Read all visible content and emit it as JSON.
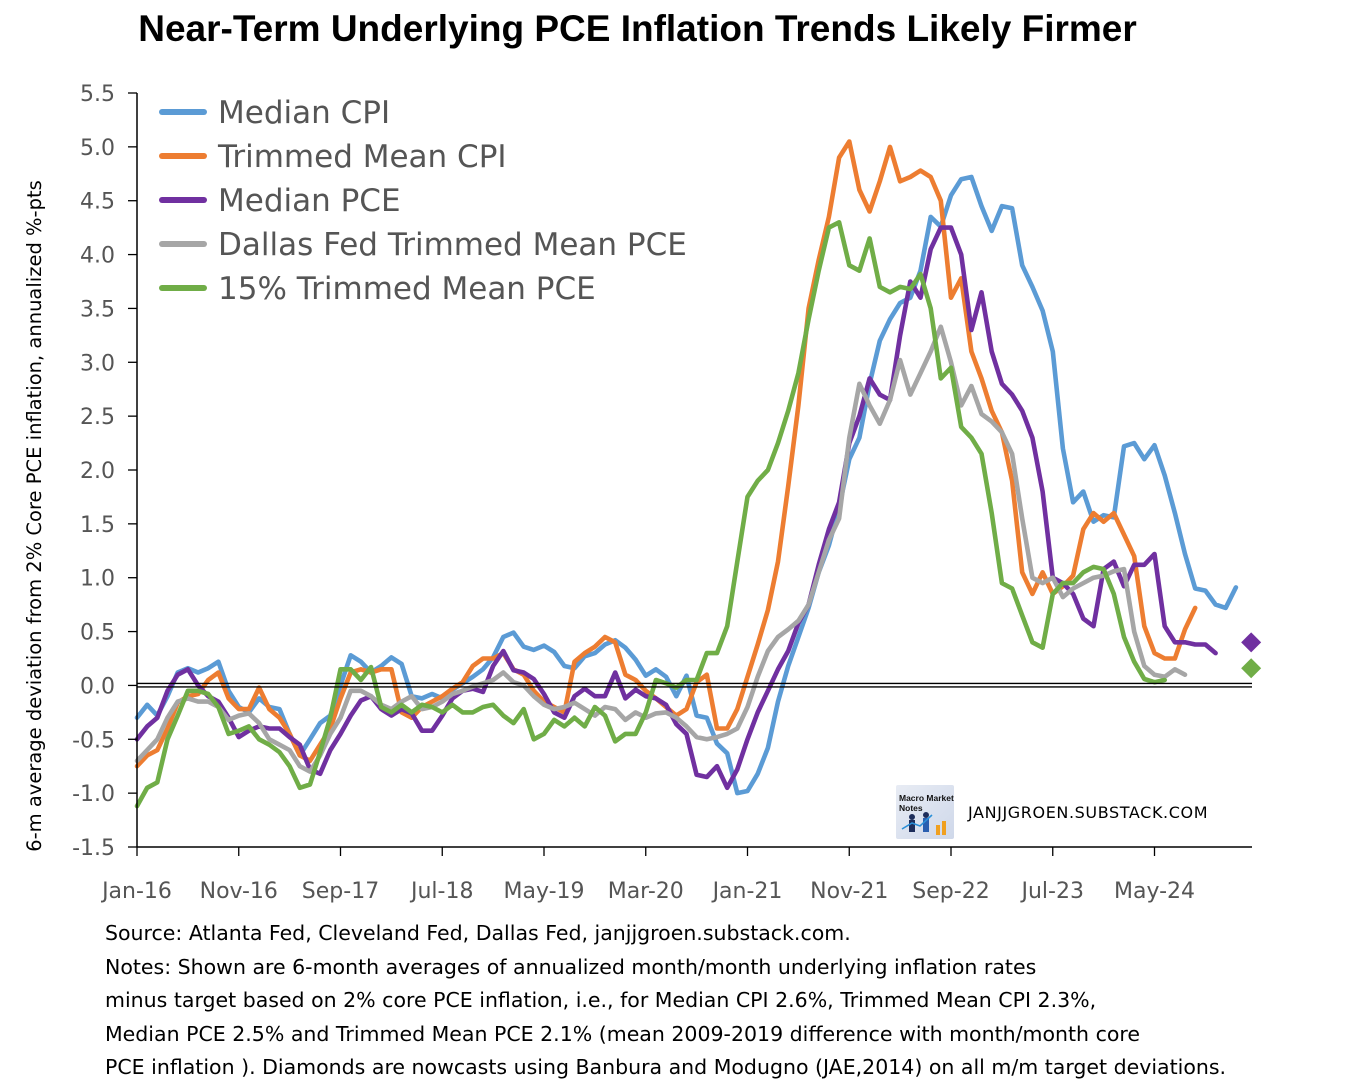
{
  "chart_data": {
    "type": "line",
    "title": "Near-Term Underlying PCE Inflation Trends Likely Firmer",
    "xlabel": "",
    "ylabel": "6-m average deviation from 2% Core PCE inflation, annualized %-pts",
    "ylim": [
      -1.5,
      5.5
    ],
    "yticks": [
      "-1.5",
      "-1.0",
      "-0.5",
      "0.0",
      "0.5",
      "1.0",
      "1.5",
      "2.0",
      "2.5",
      "3.0",
      "3.5",
      "4.0",
      "4.5",
      "5.0",
      "5.5"
    ],
    "xticks": [
      "Jan-16",
      "Nov-16",
      "Sep-17",
      "Jul-18",
      "May-19",
      "Mar-20",
      "Jan-21",
      "Nov-21",
      "Sep-22",
      "Jul-23",
      "May-24"
    ],
    "x_start": "Jan-16",
    "x_end": "Jan-25",
    "grid": false,
    "legend": "top-left",
    "zero_line": true,
    "series": [
      {
        "name": "Median CPI",
        "color": "#5B9BD5",
        "values": [
          -0.3,
          -0.18,
          -0.28,
          -0.1,
          0.12,
          0.16,
          0.12,
          0.16,
          0.22,
          -0.05,
          -0.2,
          -0.25,
          -0.12,
          -0.2,
          -0.22,
          -0.45,
          -0.65,
          -0.5,
          -0.35,
          -0.28,
          0.0,
          0.28,
          0.22,
          0.12,
          0.18,
          0.26,
          0.2,
          -0.1,
          -0.12,
          -0.08,
          -0.12,
          -0.04,
          0.02,
          0.08,
          0.15,
          0.26,
          0.45,
          0.49,
          0.36,
          0.33,
          0.37,
          0.31,
          0.18,
          0.16,
          0.27,
          0.3,
          0.38,
          0.42,
          0.35,
          0.24,
          0.09,
          0.15,
          0.08,
          -0.1,
          0.09,
          -0.28,
          -0.3,
          -0.54,
          -0.63,
          -1.0,
          -0.98,
          -0.82,
          -0.58,
          -0.15,
          0.18,
          0.45,
          0.72,
          1.05,
          1.3,
          1.65,
          2.1,
          2.3,
          2.8,
          3.2,
          3.4,
          3.55,
          3.6,
          3.85,
          4.35,
          4.26,
          4.55,
          4.7,
          4.72,
          4.45,
          4.22,
          4.45,
          4.43,
          3.9,
          3.7,
          3.48,
          3.1,
          2.2,
          1.7,
          1.8,
          1.52,
          1.58,
          1.56,
          2.22,
          2.25,
          2.1,
          2.23,
          1.95,
          1.6,
          1.22,
          0.9,
          0.88,
          0.75,
          0.72,
          0.91
        ]
      },
      {
        "name": "Trimmed Mean CPI",
        "color": "#ED7D31",
        "values": [
          -0.75,
          -0.65,
          -0.6,
          -0.4,
          -0.16,
          -0.1,
          -0.08,
          0.05,
          0.12,
          -0.12,
          -0.22,
          -0.22,
          -0.02,
          -0.22,
          -0.3,
          -0.45,
          -0.65,
          -0.7,
          -0.55,
          -0.4,
          -0.12,
          0.12,
          0.15,
          0.12,
          0.15,
          0.15,
          -0.25,
          -0.3,
          -0.2,
          -0.15,
          -0.1,
          -0.03,
          0.03,
          0.18,
          0.25,
          0.25,
          0.3,
          0.15,
          0.1,
          -0.05,
          -0.15,
          -0.2,
          -0.25,
          0.22,
          0.3,
          0.36,
          0.45,
          0.4,
          0.1,
          0.05,
          -0.05,
          -0.12,
          -0.2,
          -0.28,
          -0.22,
          0.03,
          0.1,
          -0.4,
          -0.4,
          -0.22,
          0.08,
          0.38,
          0.7,
          1.15,
          1.85,
          2.6,
          3.5,
          3.95,
          4.35,
          4.9,
          5.05,
          4.6,
          4.4,
          4.68,
          5.0,
          4.68,
          4.72,
          4.78,
          4.72,
          4.5,
          3.6,
          3.78,
          3.1,
          2.85,
          2.55,
          2.35,
          1.9,
          1.05,
          0.85,
          1.05,
          0.85,
          0.92,
          1.02,
          1.45,
          1.6,
          1.52,
          1.6,
          1.4,
          1.2,
          0.55,
          0.3,
          0.25,
          0.25,
          0.52,
          0.72
        ]
      },
      {
        "name": "Median PCE",
        "color": "#7030A0",
        "values": [
          -0.5,
          -0.38,
          -0.3,
          -0.05,
          0.1,
          0.15,
          0.0,
          -0.1,
          -0.15,
          -0.3,
          -0.48,
          -0.42,
          -0.38,
          -0.4,
          -0.4,
          -0.48,
          -0.55,
          -0.78,
          -0.82,
          -0.6,
          -0.45,
          -0.28,
          -0.14,
          -0.1,
          -0.22,
          -0.28,
          -0.22,
          -0.26,
          -0.42,
          -0.42,
          -0.28,
          -0.12,
          -0.05,
          -0.03,
          -0.06,
          0.18,
          0.32,
          0.14,
          0.12,
          0.06,
          -0.08,
          -0.25,
          -0.3,
          -0.1,
          -0.03,
          -0.1,
          -0.1,
          0.12,
          -0.12,
          -0.04,
          -0.1,
          -0.12,
          -0.18,
          -0.36,
          -0.45,
          -0.83,
          -0.85,
          -0.75,
          -0.95,
          -0.78,
          -0.5,
          -0.25,
          -0.05,
          0.15,
          0.32,
          0.58,
          0.75,
          1.12,
          1.45,
          1.7,
          2.25,
          2.5,
          2.85,
          2.7,
          2.65,
          3.25,
          3.75,
          3.6,
          4.05,
          4.25,
          4.25,
          4.0,
          3.3,
          3.65,
          3.1,
          2.8,
          2.7,
          2.55,
          2.3,
          1.8,
          1.0,
          0.95,
          0.85,
          0.62,
          0.55,
          1.08,
          1.15,
          0.92,
          1.12,
          1.12,
          1.22,
          0.55,
          0.4,
          0.4,
          0.38,
          0.38,
          0.3
        ]
      },
      {
        "name": "Dallas Fed Trimmed Mean PCE",
        "color": "#A6A6A6",
        "values": [
          -0.7,
          -0.6,
          -0.5,
          -0.3,
          -0.15,
          -0.12,
          -0.15,
          -0.15,
          -0.2,
          -0.32,
          -0.28,
          -0.26,
          -0.35,
          -0.5,
          -0.55,
          -0.6,
          -0.75,
          -0.8,
          -0.65,
          -0.45,
          -0.3,
          -0.05,
          -0.05,
          -0.1,
          -0.18,
          -0.22,
          -0.15,
          -0.1,
          -0.22,
          -0.2,
          -0.15,
          -0.08,
          -0.05,
          -0.01,
          0.02,
          0.05,
          0.12,
          0.03,
          0.0,
          -0.1,
          -0.18,
          -0.22,
          -0.2,
          -0.16,
          -0.22,
          -0.28,
          -0.2,
          -0.22,
          -0.32,
          -0.25,
          -0.3,
          -0.26,
          -0.25,
          -0.3,
          -0.38,
          -0.48,
          -0.5,
          -0.48,
          -0.45,
          -0.4,
          -0.2,
          0.08,
          0.32,
          0.45,
          0.52,
          0.6,
          0.75,
          1.05,
          1.35,
          1.55,
          2.3,
          2.8,
          2.6,
          2.43,
          2.65,
          3.02,
          2.7,
          2.9,
          3.1,
          3.33,
          3.0,
          2.6,
          2.78,
          2.52,
          2.45,
          2.35,
          2.15,
          1.55,
          1.0,
          0.95,
          1.0,
          0.82,
          0.9,
          0.95,
          1.0,
          1.02,
          1.06,
          1.08,
          0.5,
          0.18,
          0.1,
          0.08,
          0.15,
          0.1
        ]
      },
      {
        "name": "15% Trimmed Mean PCE",
        "color": "#70AD47",
        "values": [
          -1.12,
          -0.95,
          -0.9,
          -0.5,
          -0.28,
          -0.05,
          -0.05,
          -0.08,
          -0.2,
          -0.45,
          -0.42,
          -0.38,
          -0.5,
          -0.55,
          -0.62,
          -0.75,
          -0.95,
          -0.92,
          -0.62,
          -0.3,
          0.15,
          0.15,
          0.05,
          0.17,
          -0.2,
          -0.25,
          -0.18,
          -0.25,
          -0.18,
          -0.2,
          -0.25,
          -0.18,
          -0.25,
          -0.25,
          -0.2,
          -0.18,
          -0.28,
          -0.35,
          -0.22,
          -0.5,
          -0.45,
          -0.32,
          -0.38,
          -0.3,
          -0.38,
          -0.2,
          -0.28,
          -0.52,
          -0.45,
          -0.45,
          -0.25,
          0.05,
          0.02,
          -0.02,
          0.05,
          0.05,
          0.3,
          0.3,
          0.55,
          1.15,
          1.75,
          1.9,
          2.0,
          2.25,
          2.55,
          2.9,
          3.4,
          3.85,
          4.25,
          4.3,
          3.9,
          3.85,
          4.15,
          3.7,
          3.65,
          3.7,
          3.68,
          3.82,
          3.5,
          2.85,
          2.95,
          2.4,
          2.3,
          2.15,
          1.6,
          0.95,
          0.9,
          0.65,
          0.4,
          0.35,
          0.85,
          0.95,
          0.95,
          1.05,
          1.1,
          1.08,
          0.85,
          0.45,
          0.22,
          0.06,
          0.03,
          0.05
        ]
      }
    ],
    "nowcasts": [
      {
        "series": "Median PCE",
        "value": 0.4,
        "color": "#7030A0"
      },
      {
        "series": "15% Trimmed Mean PCE",
        "value": 0.16,
        "color": "#70AD47"
      }
    ]
  },
  "watermark": {
    "logo_text_line1": "Macro Market",
    "logo_text_line2": "Notes",
    "site": "JANJJGROEN.SUBSTACK.COM"
  },
  "notes": {
    "line1": "Source: Atlanta Fed, Cleveland Fed, Dallas Fed, janjjgroen.substack.com.",
    "line2": "Notes: Shown are 6-month averages of annualized month/month underlying inflation rates",
    "line3": "minus target based on 2% core PCE inflation, i.e., for Median CPI 2.6%, Trimmed Mean CPI 2.3%,",
    "line4": "Median PCE 2.5% and Trimmed Mean PCE 2.1% (mean 2009-2019 difference with month/month core",
    "line5": "PCE inflation ). Diamonds are nowcasts using Banbura and Modugno (JAE,2014) on all m/m target deviations."
  }
}
